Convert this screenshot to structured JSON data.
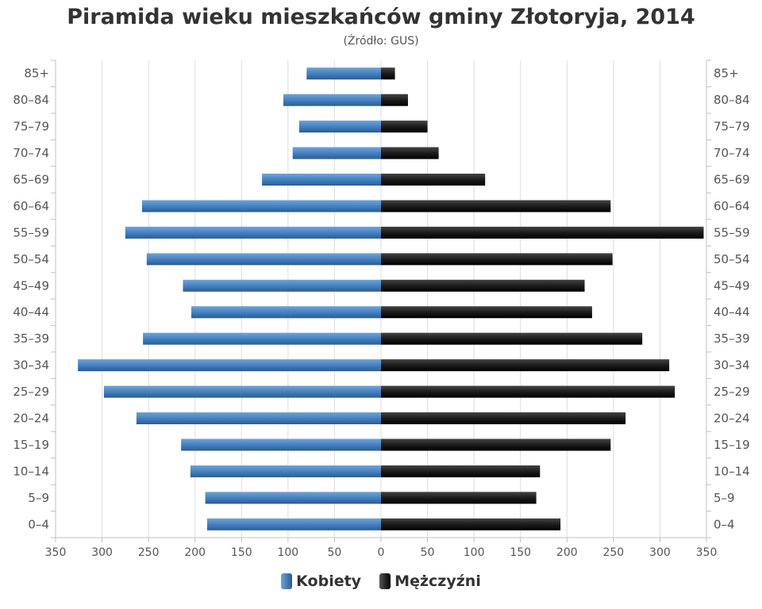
{
  "title": "Piramida wieku mieszkańców gminy Złotoryja, 2014",
  "subtitle": "(Źródło: GUS)",
  "legend": {
    "left_label": "Kobiety",
    "right_label": "Mężczyźni"
  },
  "colors": {
    "left_series": "#4682c0",
    "left_series_dark": "#2a5c94",
    "right_series": "#1c1c1c",
    "right_series_dark": "#000000",
    "grid": "#dddddd",
    "axis": "#c0c0c0"
  },
  "chart_data": {
    "type": "bar",
    "orientation": "horizontal-population-pyramid",
    "categories": [
      "85+",
      "80–84",
      "75–79",
      "70–74",
      "65–69",
      "60–64",
      "55–59",
      "50–54",
      "45–49",
      "40–44",
      "35–39",
      "30–34",
      "25–29",
      "20–24",
      "15–19",
      "10–14",
      "5–9",
      "0–4"
    ],
    "series": [
      {
        "name": "Kobiety",
        "side": "left",
        "values": [
          80,
          105,
          88,
          95,
          128,
          257,
          275,
          252,
          213,
          204,
          256,
          326,
          298,
          263,
          215,
          205,
          189,
          187
        ]
      },
      {
        "name": "Mężczyźni",
        "side": "right",
        "values": [
          15,
          29,
          50,
          62,
          112,
          247,
          347,
          249,
          219,
          227,
          281,
          310,
          316,
          263,
          247,
          171,
          167,
          193
        ]
      }
    ],
    "xlim": [
      -350,
      350
    ],
    "xticks": [
      "350",
      "300",
      "250",
      "200",
      "150",
      "100",
      "50",
      "0",
      "50",
      "100",
      "150",
      "200",
      "250",
      "300",
      "350"
    ],
    "grid": true,
    "legend_position": "bottom-center"
  }
}
